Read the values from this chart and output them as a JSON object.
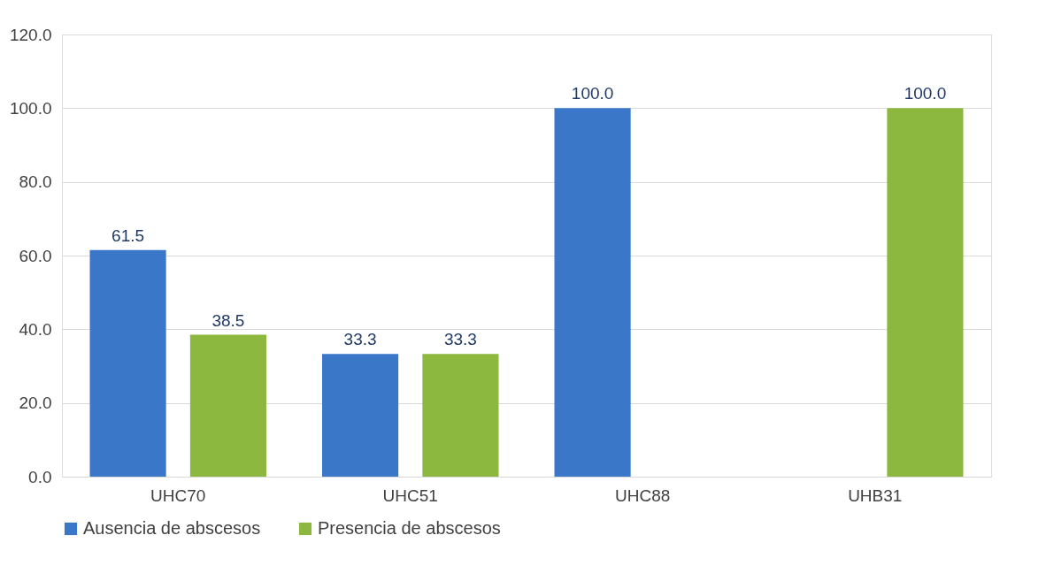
{
  "chart_data": {
    "type": "bar",
    "categories": [
      "UHC70",
      "UHC51",
      "UHC88",
      "UHB31"
    ],
    "series": [
      {
        "name": "Ausencia de abscesos",
        "color": "#3a77c8",
        "values": [
          61.5,
          33.3,
          100.0,
          null
        ],
        "value_labels": [
          "61.5",
          "33.3",
          "100.0",
          null
        ]
      },
      {
        "name": "Presencia de abscesos",
        "color": "#8cb83f",
        "values": [
          38.5,
          33.3,
          null,
          100.0
        ],
        "value_labels": [
          "38.5",
          "33.3",
          null,
          "100.0"
        ]
      }
    ],
    "ylim": [
      0,
      120
    ],
    "yticks": [
      {
        "value": 0,
        "label": "0.0"
      },
      {
        "value": 20,
        "label": "20.0"
      },
      {
        "value": 40,
        "label": "40.0"
      },
      {
        "value": 60,
        "label": "60.0"
      },
      {
        "value": 80,
        "label": "80.0"
      },
      {
        "value": 100,
        "label": "100.0"
      },
      {
        "value": 120,
        "label": "120.0"
      }
    ],
    "grid": "y",
    "legend": "bottom"
  }
}
